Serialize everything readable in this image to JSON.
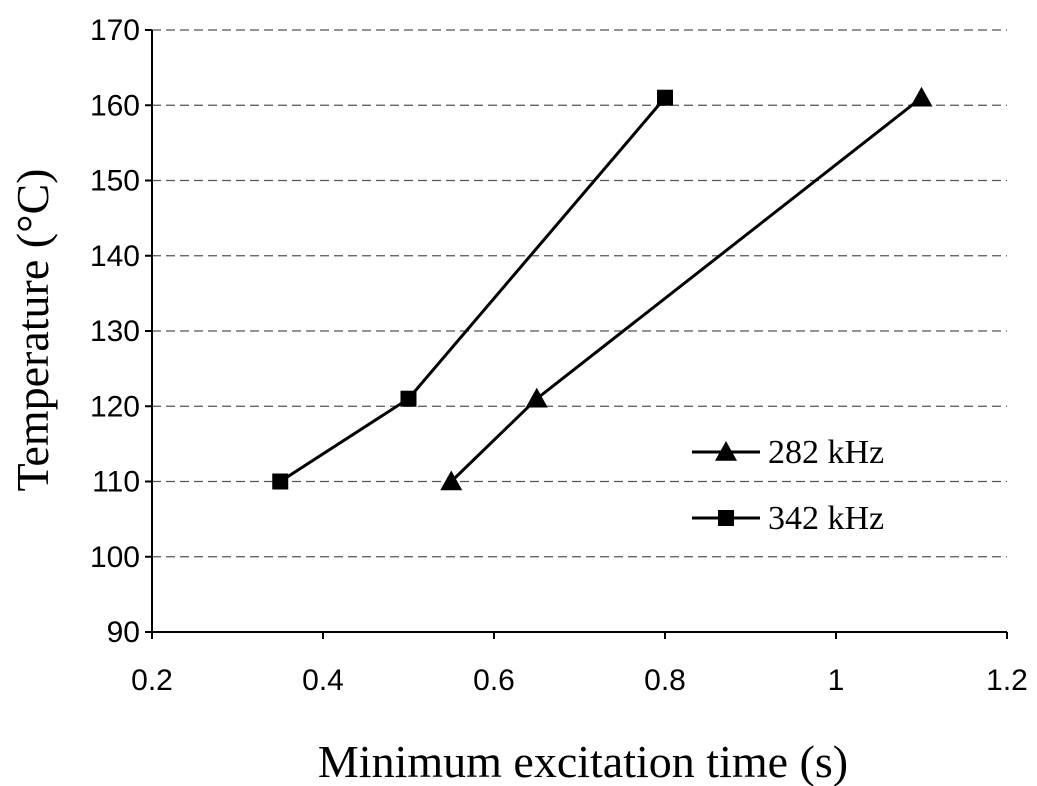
{
  "chart_data": {
    "type": "line",
    "title": "",
    "xlabel": "Minimum excitation time (s)",
    "ylabel": "Temperature (°C)",
    "xlim": [
      0.2,
      1.2
    ],
    "ylim": [
      90,
      170
    ],
    "xticks": [
      0.2,
      0.4,
      0.6,
      0.8,
      1,
      1.2
    ],
    "xtick_labels": [
      "0.2",
      "0.4",
      "0.6",
      "0.8",
      "1",
      "1.2"
    ],
    "yticks": [
      90,
      100,
      110,
      120,
      130,
      140,
      150,
      160,
      170
    ],
    "ytick_labels": [
      "90",
      "100",
      "110",
      "120",
      "130",
      "140",
      "150",
      "160",
      "170"
    ],
    "grid": "horizontal dashed",
    "legend_position": "right",
    "series": [
      {
        "name": "282 kHz",
        "marker": "triangle",
        "color": "#000000",
        "x": [
          0.55,
          0.65,
          1.1
        ],
        "y": [
          110,
          121,
          161
        ]
      },
      {
        "name": "342 kHz",
        "marker": "square",
        "color": "#000000",
        "x": [
          0.35,
          0.5,
          0.8
        ],
        "y": [
          110,
          121,
          161
        ]
      }
    ]
  }
}
